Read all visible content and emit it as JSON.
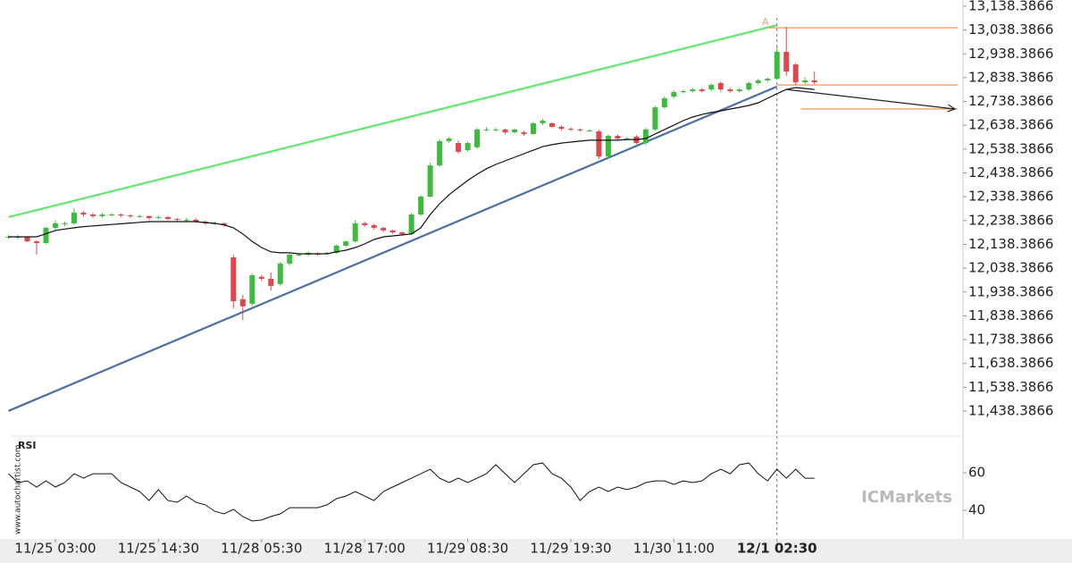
{
  "chart_data": {
    "type": "candlestick",
    "ylim": [
      11333.3,
      13164.66
    ],
    "yticks": [
      {
        "value": 13138.3866,
        "label": "13,138.3866"
      },
      {
        "value": 13038.3866,
        "label": "13,038.3866"
      },
      {
        "value": 12938.3866,
        "label": "12,938.3866"
      },
      {
        "value": 12838.3866,
        "label": "12,838.3866"
      },
      {
        "value": 12738.3866,
        "label": "12,738.3866"
      },
      {
        "value": 12638.3866,
        "label": "12,638.3866"
      },
      {
        "value": 12538.3866,
        "label": "12,538.3866"
      },
      {
        "value": 12438.3866,
        "label": "12,438.3866"
      },
      {
        "value": 12338.3866,
        "label": "12,338.3866"
      },
      {
        "value": 12238.3866,
        "label": "12,238.3866"
      },
      {
        "value": 12138.3866,
        "label": "12,138.3866"
      },
      {
        "value": 12038.3866,
        "label": "12,038.3866"
      },
      {
        "value": 11938.3866,
        "label": "11,938.3866"
      },
      {
        "value": 11838.3866,
        "label": "11,838.3866"
      },
      {
        "value": 11738.3866,
        "label": "11,738.3866"
      },
      {
        "value": 11638.3866,
        "label": "11,638.3866"
      },
      {
        "value": 11538.3866,
        "label": "11,538.3866"
      },
      {
        "value": 11438.3866,
        "label": "11,438.3866"
      }
    ],
    "xticks": [
      {
        "value": 5,
        "label": "11/25 03:00"
      },
      {
        "value": 16,
        "label": "11/25 14:30"
      },
      {
        "value": 27,
        "label": "11/28 05:30"
      },
      {
        "value": 38,
        "label": "11/28 17:00"
      },
      {
        "value": 49,
        "label": "11/29 08:30"
      },
      {
        "value": 60,
        "label": "11/29 19:30"
      },
      {
        "value": 71,
        "label": "11/30 11:00"
      },
      {
        "value": 82,
        "label": "12/1 02:30"
      }
    ],
    "up_color": "#3dbb3d",
    "down_color": "#e0474c",
    "open": [
      12170,
      12170,
      12170,
      12151,
      12144,
      12208,
      12227,
      12227,
      12272,
      12264,
      12257,
      12264,
      12264,
      12260,
      12257,
      12257,
      12249,
      12253,
      12245,
      12242,
      12242,
      12234,
      12227,
      12227,
      12084,
      11908,
      11889,
      12002,
      11994,
      11972,
      12058,
      12095,
      12095,
      12099,
      12099,
      12103,
      12133,
      12151,
      12227,
      12219,
      12208,
      12197,
      12189,
      12182,
      12264,
      12339,
      12470,
      12572,
      12564,
      12534,
      12546,
      12621,
      12621,
      12621,
      12609,
      12609,
      12602,
      12647,
      12647,
      12632,
      12624,
      12621,
      12617,
      12613,
      12508,
      12594,
      12583,
      12591,
      12564,
      12621,
      12714,
      12759,
      12778,
      12782,
      12789,
      12789,
      12816,
      12789,
      12782,
      12789,
      12816,
      12827,
      12834,
      12947,
      12894,
      12819,
      12827
    ],
    "high": [
      12178,
      12178,
      12172,
      12155,
      12212,
      12240,
      12235,
      12290,
      12278,
      12270,
      12270,
      12270,
      12268,
      12265,
      12262,
      12260,
      12260,
      12258,
      12250,
      12250,
      12248,
      12238,
      12234,
      12230,
      12095,
      11926,
      12015,
      12010,
      12020,
      12065,
      12100,
      12102,
      12108,
      12105,
      12108,
      12138,
      12155,
      12240,
      12235,
      12225,
      12212,
      12200,
      12192,
      12270,
      12345,
      12480,
      12580,
      12590,
      12575,
      12570,
      12628,
      12630,
      12628,
      12625,
      12626,
      12615,
      12652,
      12665,
      12652,
      12638,
      12630,
      12626,
      12622,
      12620,
      12600,
      12600,
      12590,
      12598,
      12628,
      12720,
      12760,
      12785,
      12788,
      12795,
      12795,
      12815,
      12822,
      12795,
      12795,
      12822,
      12833,
      12840,
      12970,
      13052,
      12900,
      12840,
      12864
    ],
    "low": [
      12162,
      12160,
      12148,
      12095,
      12140,
      12200,
      12215,
      12220,
      12255,
      12250,
      12250,
      12255,
      12252,
      12250,
      12250,
      12242,
      12245,
      12240,
      12236,
      12235,
      12228,
      12220,
      12220,
      12212,
      11870,
      11821,
      11880,
      11985,
      11945,
      11965,
      12050,
      12088,
      12090,
      12090,
      12094,
      12098,
      12128,
      12145,
      12212,
      12200,
      12190,
      12182,
      12175,
      12178,
      12258,
      12335,
      12465,
      12565,
      12520,
      12528,
      12540,
      12614,
      12612,
      12602,
      12604,
      12595,
      12598,
      12640,
      12628,
      12618,
      12615,
      12612,
      12610,
      12497,
      12500,
      12576,
      12576,
      12558,
      12555,
      12615,
      12708,
      12752,
      12772,
      12776,
      12776,
      12782,
      12780,
      12775,
      12776,
      12782,
      12810,
      12820,
      12830,
      12846,
      12808,
      12812,
      12812
    ],
    "close": [
      12170,
      12170,
      12151,
      12144,
      12208,
      12227,
      12227,
      12272,
      12264,
      12257,
      12264,
      12264,
      12260,
      12257,
      12257,
      12249,
      12253,
      12245,
      12242,
      12242,
      12234,
      12227,
      12227,
      12219,
      11900,
      11878,
      12009,
      11994,
      11964,
      12058,
      12095,
      12095,
      12103,
      12095,
      12103,
      12133,
      12151,
      12227,
      12219,
      12208,
      12197,
      12189,
      12182,
      12264,
      12339,
      12470,
      12572,
      12583,
      12527,
      12564,
      12621,
      12621,
      12621,
      12609,
      12621,
      12602,
      12647,
      12658,
      12632,
      12624,
      12621,
      12617,
      12617,
      12508,
      12594,
      12583,
      12583,
      12564,
      12621,
      12714,
      12752,
      12778,
      12782,
      12789,
      12782,
      12808,
      12789,
      12782,
      12789,
      12816,
      12827,
      12834,
      12947,
      12864,
      12819,
      12827,
      12819
    ],
    "ma": {
      "color": "#111111",
      "values": [
        12170,
        12170,
        12170,
        12170,
        12183,
        12197,
        12203,
        12208,
        12213,
        12216,
        12219,
        12222,
        12225,
        12228,
        12231,
        12234,
        12234,
        12234,
        12234,
        12234,
        12234,
        12230,
        12227,
        12220,
        12208,
        12182,
        12151,
        12125,
        12107,
        12103,
        12103,
        12099,
        12099,
        12099,
        12099,
        12107,
        12114,
        12125,
        12140,
        12159,
        12170,
        12174,
        12178,
        12182,
        12208,
        12264,
        12309,
        12347,
        12377,
        12407,
        12433,
        12456,
        12474,
        12489,
        12504,
        12519,
        12534,
        12549,
        12557,
        12564,
        12568,
        12572,
        12576,
        12576,
        12576,
        12576,
        12579,
        12579,
        12583,
        12602,
        12621,
        12639,
        12658,
        12673,
        12684,
        12692,
        12699,
        12707,
        12714,
        12722,
        12733,
        12752,
        12771,
        12789,
        12797,
        12793,
        12789
      ]
    },
    "trendlines": [
      {
        "color": "#5fe86c",
        "x": [
          0,
          82
        ],
        "values": [
          12253,
          13059
        ]
      },
      {
        "color": "#4a6fa5",
        "x": [
          0,
          82
        ],
        "values": [
          11439,
          12801
        ]
      }
    ],
    "levels": {
      "color": "#f0864a",
      "values": [
        13048,
        12808,
        12707
      ]
    },
    "forecast": {
      "color": "#222222",
      "x": [
        83,
        101
      ],
      "values": [
        12789,
        12707
      ]
    },
    "marker": {
      "x": 82,
      "label": "A"
    },
    "rsi": {
      "title": "RSI",
      "color": "#111111",
      "ylim": [
        26.2,
        78.6
      ],
      "yticks": [
        60,
        40
      ],
      "values": [
        59.5,
        54.8,
        55.7,
        52.4,
        55.7,
        52.4,
        54.8,
        59.5,
        57.1,
        59.5,
        59.5,
        59.5,
        54.8,
        52.4,
        50,
        45.2,
        51,
        45.2,
        44.3,
        47.6,
        44.3,
        42.9,
        39.5,
        38.1,
        40.5,
        36.7,
        34.3,
        34.8,
        36.7,
        38.1,
        41.4,
        41.4,
        41.4,
        41.4,
        42.9,
        46.2,
        47.6,
        50,
        47.6,
        45.2,
        50,
        52.4,
        54.8,
        57.1,
        59.5,
        61.9,
        57.1,
        54.8,
        57.1,
        54.8,
        57.1,
        59.5,
        64.3,
        59.5,
        54.8,
        59.5,
        64.3,
        65.2,
        59.5,
        57.1,
        52.4,
        45.2,
        50,
        52.4,
        50,
        52.4,
        51,
        52.4,
        54.8,
        55.7,
        55.7,
        53.8,
        55.7,
        54.8,
        55.7,
        59.5,
        61.9,
        59.5,
        64.3,
        65.2,
        59.5,
        55.7,
        61.9,
        57.1,
        61.9,
        57.1,
        57.1
      ]
    },
    "watermark": "www.autochartist.com",
    "brand": "ICMarkets"
  }
}
